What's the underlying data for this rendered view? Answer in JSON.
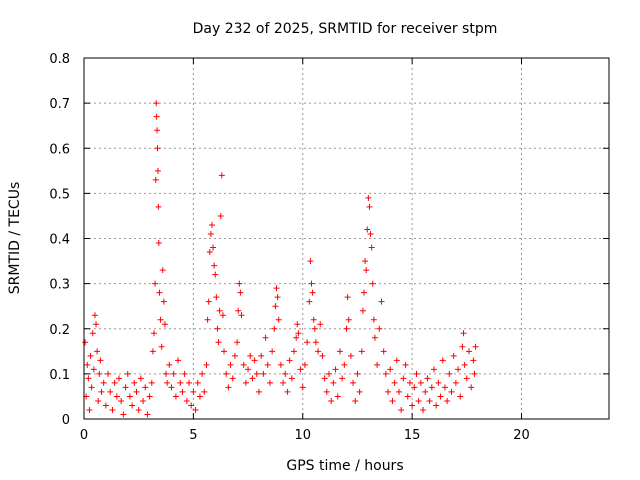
{
  "chart_data": {
    "type": "scatter",
    "title": "Day 232 of 2025, SRMTID for receiver stpm",
    "xlabel": "GPS time / hours",
    "ylabel": "SRMTID / TECUs",
    "xlim": [
      0,
      24
    ],
    "ylim": [
      0,
      0.8
    ],
    "xticks": [
      0,
      5,
      10,
      15,
      20
    ],
    "xtick_labels": [
      "0",
      "5",
      "10",
      "15",
      "20"
    ],
    "yticks": [
      0,
      0.1,
      0.2,
      0.3,
      0.4,
      0.5,
      0.6,
      0.7,
      0.8
    ],
    "ytick_labels": [
      "0",
      "0.1",
      "0.2",
      "0.3",
      "0.4",
      "0.5",
      "0.6",
      "0.7",
      "0.8"
    ],
    "grid": true,
    "marker": "+",
    "marker_color": "#ff0000",
    "series": [
      {
        "name": "SRMTID",
        "points": [
          [
            0.05,
            0.17
          ],
          [
            0.1,
            0.05
          ],
          [
            0.15,
            0.12
          ],
          [
            0.2,
            0.09
          ],
          [
            0.25,
            0.02
          ],
          [
            0.3,
            0.14
          ],
          [
            0.35,
            0.07
          ],
          [
            0.4,
            0.19
          ],
          [
            0.45,
            0.11
          ],
          [
            0.5,
            0.23
          ],
          [
            0.55,
            0.21
          ],
          [
            0.6,
            0.15
          ],
          [
            0.65,
            0.04
          ],
          [
            0.7,
            0.1
          ],
          [
            0.75,
            0.13
          ],
          [
            0.8,
            0.06
          ],
          [
            0.9,
            0.08
          ],
          [
            1.0,
            0.03
          ],
          [
            1.1,
            0.1
          ],
          [
            1.2,
            0.06
          ],
          [
            1.3,
            0.02
          ],
          [
            1.4,
            0.08
          ],
          [
            1.5,
            0.05
          ],
          [
            1.6,
            0.09
          ],
          [
            1.7,
            0.04
          ],
          [
            1.8,
            0.01
          ],
          [
            1.9,
            0.07
          ],
          [
            2.0,
            0.1
          ],
          [
            2.1,
            0.05
          ],
          [
            2.2,
            0.03
          ],
          [
            2.3,
            0.08
          ],
          [
            2.4,
            0.06
          ],
          [
            2.5,
            0.02
          ],
          [
            2.6,
            0.09
          ],
          [
            2.7,
            0.04
          ],
          [
            2.8,
            0.07
          ],
          [
            2.9,
            0.01
          ],
          [
            3.0,
            0.05
          ],
          [
            3.1,
            0.08
          ],
          [
            3.15,
            0.15
          ],
          [
            3.2,
            0.19
          ],
          [
            3.25,
            0.3
          ],
          [
            3.28,
            0.53
          ],
          [
            3.3,
            0.7
          ],
          [
            3.32,
            0.67
          ],
          [
            3.34,
            0.64
          ],
          [
            3.36,
            0.6
          ],
          [
            3.38,
            0.55
          ],
          [
            3.4,
            0.47
          ],
          [
            3.42,
            0.39
          ],
          [
            3.45,
            0.28
          ],
          [
            3.5,
            0.22
          ],
          [
            3.55,
            0.16
          ],
          [
            3.6,
            0.33
          ],
          [
            3.65,
            0.26
          ],
          [
            3.7,
            0.21
          ],
          [
            3.75,
            0.1
          ],
          [
            3.8,
            0.08
          ],
          [
            3.9,
            0.12
          ],
          [
            4.0,
            0.07
          ],
          [
            4.1,
            0.1
          ],
          [
            4.2,
            0.05
          ],
          [
            4.3,
            0.13
          ],
          [
            4.4,
            0.08
          ],
          [
            4.5,
            0.06
          ],
          [
            4.6,
            0.1
          ],
          [
            4.7,
            0.04
          ],
          [
            4.8,
            0.08
          ],
          [
            4.9,
            0.03
          ],
          [
            5.0,
            0.06
          ],
          [
            5.1,
            0.02
          ],
          [
            5.2,
            0.08
          ],
          [
            5.3,
            0.05
          ],
          [
            5.4,
            0.1
          ],
          [
            5.5,
            0.06
          ],
          [
            5.6,
            0.12
          ],
          [
            5.65,
            0.22
          ],
          [
            5.7,
            0.26
          ],
          [
            5.75,
            0.37
          ],
          [
            5.8,
            0.41
          ],
          [
            5.85,
            0.43
          ],
          [
            5.9,
            0.38
          ],
          [
            5.95,
            0.34
          ],
          [
            6.0,
            0.32
          ],
          [
            6.05,
            0.27
          ],
          [
            6.1,
            0.2
          ],
          [
            6.15,
            0.17
          ],
          [
            6.2,
            0.24
          ],
          [
            6.25,
            0.45
          ],
          [
            6.3,
            0.54
          ],
          [
            6.35,
            0.23
          ],
          [
            6.4,
            0.15
          ],
          [
            6.5,
            0.1
          ],
          [
            6.6,
            0.07
          ],
          [
            6.7,
            0.12
          ],
          [
            6.8,
            0.09
          ],
          [
            6.9,
            0.14
          ],
          [
            7.0,
            0.17
          ],
          [
            7.05,
            0.24
          ],
          [
            7.1,
            0.3
          ],
          [
            7.15,
            0.28
          ],
          [
            7.2,
            0.23
          ],
          [
            7.3,
            0.12
          ],
          [
            7.4,
            0.08
          ],
          [
            7.5,
            0.11
          ],
          [
            7.6,
            0.14
          ],
          [
            7.7,
            0.09
          ],
          [
            7.8,
            0.13
          ],
          [
            7.9,
            0.1
          ],
          [
            8.0,
            0.06
          ],
          [
            8.1,
            0.14
          ],
          [
            8.2,
            0.1
          ],
          [
            8.3,
            0.18
          ],
          [
            8.4,
            0.12
          ],
          [
            8.5,
            0.08
          ],
          [
            8.6,
            0.15
          ],
          [
            8.7,
            0.2
          ],
          [
            8.75,
            0.25
          ],
          [
            8.8,
            0.29
          ],
          [
            8.85,
            0.27
          ],
          [
            8.9,
            0.22
          ],
          [
            9.0,
            0.12
          ],
          [
            9.1,
            0.08
          ],
          [
            9.2,
            0.1
          ],
          [
            9.3,
            0.06
          ],
          [
            9.4,
            0.13
          ],
          [
            9.5,
            0.09
          ],
          [
            9.6,
            0.15
          ],
          [
            9.7,
            0.18
          ],
          [
            9.75,
            0.21
          ],
          [
            9.8,
            0.19
          ],
          [
            9.9,
            0.11
          ],
          [
            10.0,
            0.07
          ],
          [
            10.1,
            0.12
          ],
          [
            10.2,
            0.17
          ],
          [
            10.3,
            0.26
          ],
          [
            10.35,
            0.35
          ],
          [
            10.4,
            0.3
          ],
          [
            10.45,
            0.28
          ],
          [
            10.5,
            0.22
          ],
          [
            10.55,
            0.2
          ],
          [
            10.6,
            0.17
          ],
          [
            10.7,
            0.15
          ],
          [
            10.8,
            0.21
          ],
          [
            10.9,
            0.14
          ],
          [
            11.0,
            0.09
          ],
          [
            11.1,
            0.06
          ],
          [
            11.2,
            0.1
          ],
          [
            11.3,
            0.04
          ],
          [
            11.4,
            0.08
          ],
          [
            11.5,
            0.11
          ],
          [
            11.6,
            0.05
          ],
          [
            11.7,
            0.15
          ],
          [
            11.8,
            0.09
          ],
          [
            11.9,
            0.12
          ],
          [
            12.0,
            0.2
          ],
          [
            12.05,
            0.27
          ],
          [
            12.1,
            0.22
          ],
          [
            12.2,
            0.14
          ],
          [
            12.3,
            0.08
          ],
          [
            12.4,
            0.04
          ],
          [
            12.5,
            0.1
          ],
          [
            12.6,
            0.06
          ],
          [
            12.7,
            0.15
          ],
          [
            12.75,
            0.24
          ],
          [
            12.8,
            0.28
          ],
          [
            12.85,
            0.35
          ],
          [
            12.9,
            0.33
          ],
          [
            12.95,
            0.42
          ],
          [
            13.0,
            0.49
          ],
          [
            13.05,
            0.47
          ],
          [
            13.1,
            0.41
          ],
          [
            13.15,
            0.38
          ],
          [
            13.2,
            0.3
          ],
          [
            13.25,
            0.22
          ],
          [
            13.3,
            0.18
          ],
          [
            13.4,
            0.12
          ],
          [
            13.5,
            0.2
          ],
          [
            13.6,
            0.26
          ],
          [
            13.7,
            0.15
          ],
          [
            13.8,
            0.1
          ],
          [
            13.9,
            0.06
          ],
          [
            14.0,
            0.11
          ],
          [
            14.1,
            0.04
          ],
          [
            14.2,
            0.08
          ],
          [
            14.3,
            0.13
          ],
          [
            14.4,
            0.06
          ],
          [
            14.5,
            0.02
          ],
          [
            14.6,
            0.09
          ],
          [
            14.7,
            0.12
          ],
          [
            14.8,
            0.05
          ],
          [
            14.9,
            0.08
          ],
          [
            15.0,
            0.03
          ],
          [
            15.1,
            0.07
          ],
          [
            15.2,
            0.1
          ],
          [
            15.3,
            0.04
          ],
          [
            15.4,
            0.08
          ],
          [
            15.5,
            0.02
          ],
          [
            15.6,
            0.06
          ],
          [
            15.7,
            0.09
          ],
          [
            15.8,
            0.04
          ],
          [
            15.9,
            0.07
          ],
          [
            16.0,
            0.11
          ],
          [
            16.1,
            0.03
          ],
          [
            16.2,
            0.08
          ],
          [
            16.3,
            0.05
          ],
          [
            16.4,
            0.13
          ],
          [
            16.5,
            0.07
          ],
          [
            16.6,
            0.04
          ],
          [
            16.7,
            0.1
          ],
          [
            16.8,
            0.06
          ],
          [
            16.9,
            0.14
          ],
          [
            17.0,
            0.08
          ],
          [
            17.1,
            0.11
          ],
          [
            17.2,
            0.05
          ],
          [
            17.3,
            0.16
          ],
          [
            17.35,
            0.19
          ],
          [
            17.4,
            0.12
          ],
          [
            17.5,
            0.09
          ],
          [
            17.6,
            0.15
          ],
          [
            17.7,
            0.07
          ],
          [
            17.8,
            0.13
          ],
          [
            17.85,
            0.1
          ],
          [
            17.9,
            0.16
          ]
        ]
      }
    ]
  }
}
